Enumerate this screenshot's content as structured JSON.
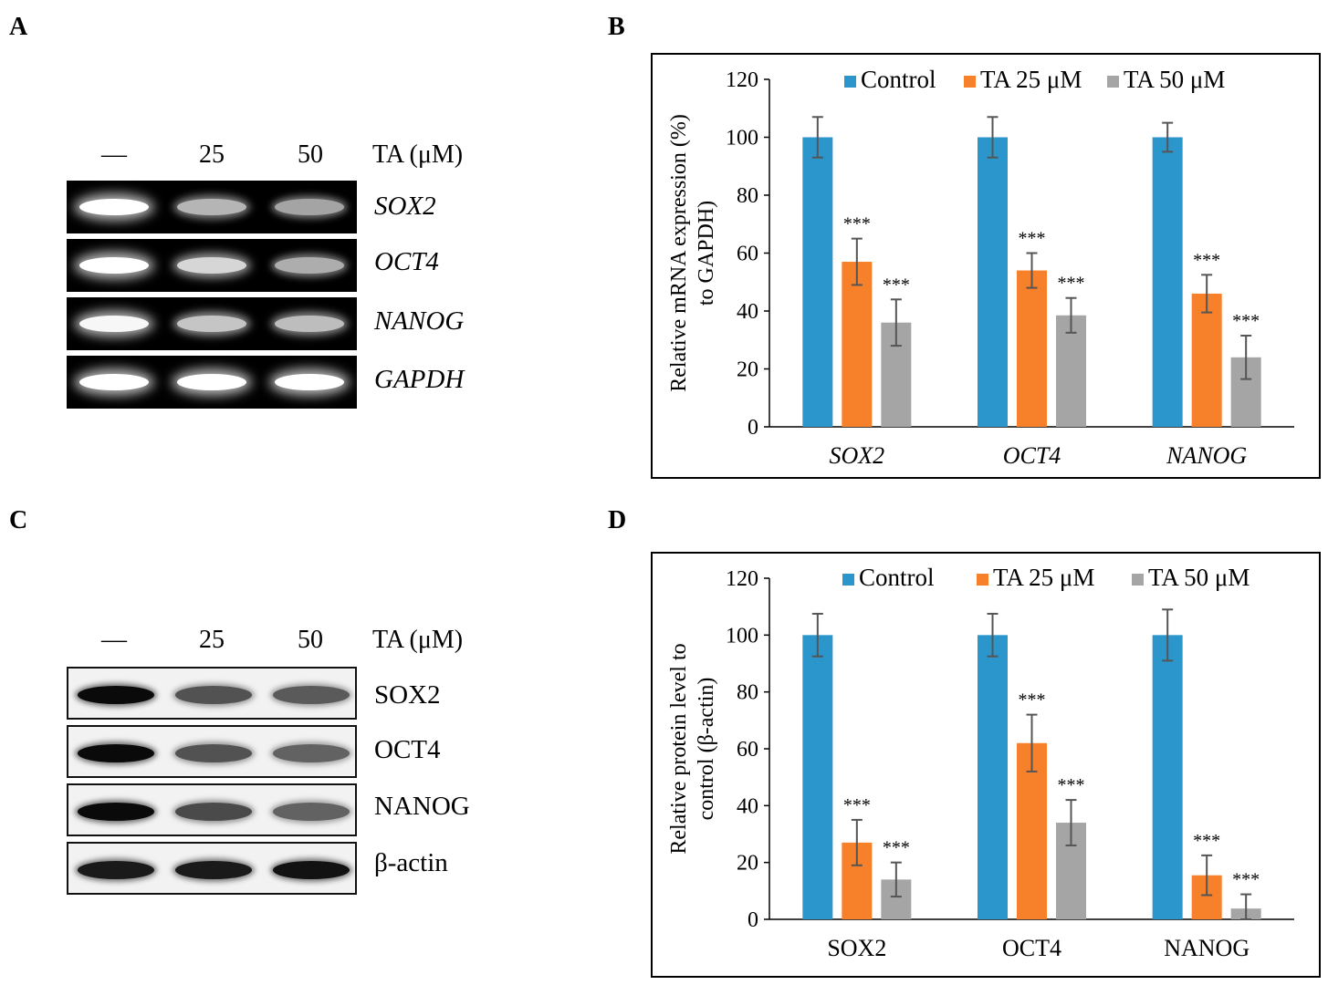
{
  "panels": {
    "a": {
      "letter": "A",
      "lane_labels": [
        "—",
        "25",
        "50"
      ],
      "treatment_label": "TA (μM)",
      "rows": [
        {
          "label": "SOX2",
          "intensity": [
            1.0,
            0.55,
            0.45
          ]
        },
        {
          "label": "OCT4",
          "intensity": [
            1.0,
            0.75,
            0.5
          ]
        },
        {
          "label": "NANOG",
          "intensity": [
            0.95,
            0.65,
            0.6
          ]
        },
        {
          "label": "GAPDH",
          "intensity": [
            1.0,
            1.0,
            1.0
          ]
        }
      ]
    },
    "b": {
      "letter": "B"
    },
    "c": {
      "letter": "C",
      "lane_labels": [
        "—",
        "25",
        "50"
      ],
      "treatment_label": "TA (μM)",
      "rows": [
        {
          "label": "SOX2",
          "intensity": [
            1.0,
            0.55,
            0.5
          ]
        },
        {
          "label": "OCT4",
          "intensity": [
            1.0,
            0.55,
            0.45
          ]
        },
        {
          "label": "NANOG",
          "intensity": [
            1.0,
            0.6,
            0.45
          ]
        },
        {
          "label": "β-actin",
          "intensity": [
            0.9,
            0.9,
            0.95
          ]
        }
      ]
    },
    "d": {
      "letter": "D"
    }
  },
  "chart_data": [
    {
      "panel": "B",
      "type": "bar",
      "categories": [
        "SOX2",
        "OCT4",
        "NANOG"
      ],
      "category_style": "italic",
      "series": [
        {
          "name": "Control",
          "color": "#2a96cc",
          "values": [
            100,
            100,
            100
          ],
          "errors": [
            7,
            7,
            5
          ]
        },
        {
          "name": "TA 25 μM",
          "color": "#f7802a",
          "values": [
            57,
            54,
            46
          ],
          "errors": [
            8,
            6,
            6.5
          ]
        },
        {
          "name": "TA 50 μM",
          "color": "#a5a5a5",
          "values": [
            36,
            38.5,
            24
          ],
          "errors": [
            8,
            6,
            7.5
          ]
        }
      ],
      "significance": [
        [
          null,
          null,
          null
        ],
        [
          "***",
          "***",
          "***"
        ],
        [
          "***",
          "***",
          "***"
        ]
      ],
      "ylabel_lines": [
        "Relative  mRNA  expression  (%)",
        "to GAPDH)"
      ],
      "ylim": [
        0,
        120
      ],
      "yticks": [
        0,
        20,
        40,
        60,
        80,
        100,
        120
      ],
      "legend": "top"
    },
    {
      "panel": "D",
      "type": "bar",
      "categories": [
        "SOX2",
        "OCT4",
        "NANOG"
      ],
      "category_style": "normal",
      "series": [
        {
          "name": "Control",
          "color": "#2a96cc",
          "values": [
            100,
            100,
            100
          ],
          "errors": [
            7.5,
            7.5,
            9
          ]
        },
        {
          "name": "TA 25 μM",
          "color": "#f7802a",
          "values": [
            27,
            62,
            15.5
          ],
          "errors": [
            8,
            10,
            7
          ]
        },
        {
          "name": "TA 50 μM",
          "color": "#a5a5a5",
          "values": [
            14,
            34,
            3.8
          ],
          "errors": [
            6,
            8,
            5
          ]
        }
      ],
      "significance": [
        [
          null,
          null,
          null
        ],
        [
          "***",
          "***",
          "***"
        ],
        [
          "***",
          "***",
          "***"
        ]
      ],
      "ylabel_lines": [
        "Relative  protein  level  to",
        "control  (β-actin)"
      ],
      "ylim": [
        0,
        120
      ],
      "yticks": [
        0,
        20,
        40,
        60,
        80,
        100,
        120
      ],
      "legend": "top"
    }
  ]
}
